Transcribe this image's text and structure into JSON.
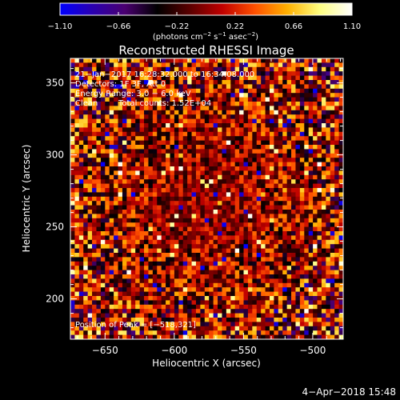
{
  "chart_data": {
    "type": "heatmap",
    "title": "Reconstructed RHESSI Image",
    "xlabel": "Heliocentric X (arcsec)",
    "ylabel": "Heliocentric Y (arcsec)",
    "xlim": [
      -675,
      -478
    ],
    "ylim": [
      172,
      367
    ],
    "x_ticks": [
      {
        "value": -650,
        "label": "−650"
      },
      {
        "value": -600,
        "label": "−600"
      },
      {
        "value": -550,
        "label": "−550"
      },
      {
        "value": -500,
        "label": "−500"
      }
    ],
    "y_ticks": [
      {
        "value": 200,
        "label": "200"
      },
      {
        "value": 250,
        "label": "250"
      },
      {
        "value": 300,
        "label": "300"
      },
      {
        "value": 350,
        "label": "350"
      }
    ],
    "colorbar": {
      "range": [
        -1.1,
        1.1
      ],
      "colors": [
        "#0000ff",
        "#2a00b0",
        "#4a0070",
        "#000000",
        "#5a0000",
        "#c00000",
        "#ff5000",
        "#ffb000",
        "#ffff80",
        "#ffffff"
      ],
      "ticks": [
        {
          "value": -1.1,
          "label": "−1.10"
        },
        {
          "value": -0.66,
          "label": "−0.66"
        },
        {
          "value": -0.22,
          "label": "−0.22"
        },
        {
          "value": 0.22,
          "label": "0.22"
        },
        {
          "value": 0.66,
          "label": "0.66"
        },
        {
          "value": 1.1,
          "label": "1.10"
        }
      ],
      "unit_main": "(photons cm",
      "unit_exp1": "−2",
      "unit_mid": " s",
      "unit_exp2": "−1",
      "unit_mid2": " asec",
      "unit_exp3": "−2",
      "unit_end": ")"
    },
    "annotations": {
      "line1": "21−Jan−2017 16:28:32.000 to 16:34:08.000",
      "line2": "Detectors: 1F 3F, Att 0",
      "line3": "Energy Range: 3.0 − 6.0 keV",
      "line4_a": "Clean",
      "line4_b": "Total counts: 1.52E+04",
      "peak": "Position of Peak = [−518,321]"
    },
    "timestamp": "4−Apr−2018 15:48"
  }
}
